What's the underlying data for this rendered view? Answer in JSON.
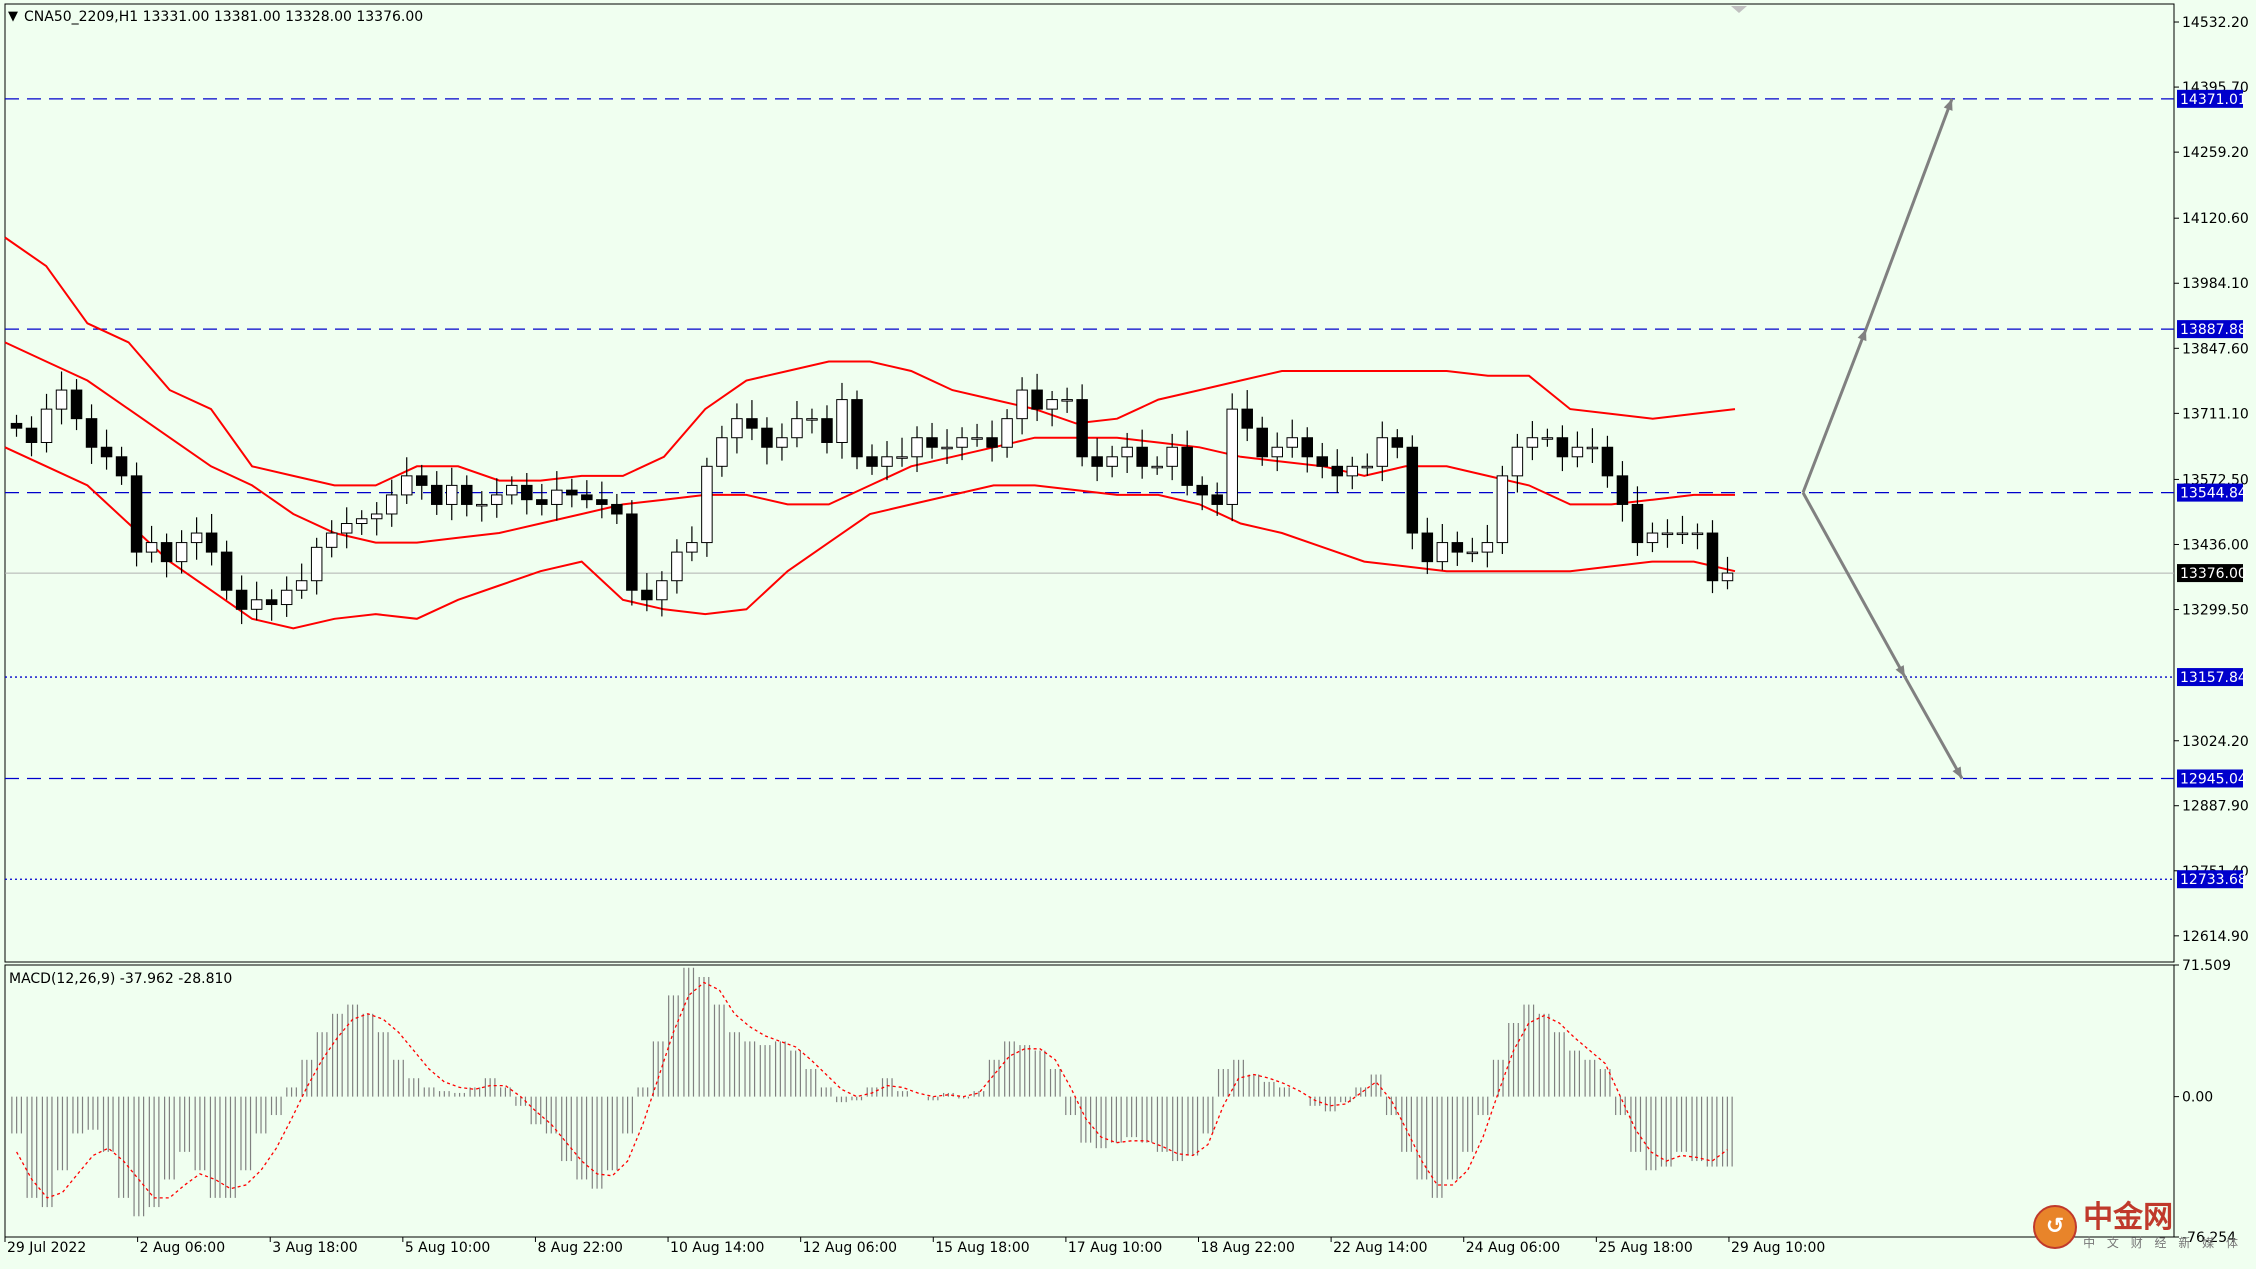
{
  "header": {
    "symbol_line": "CNA50_2209,H1  13331.00 13381.00 13328.00 13376.00"
  },
  "macd_header": "MACD(12,26,9) -37.962 -28.810",
  "colors": {
    "background": "#f0fff0",
    "candle": "#000000",
    "bollinger": "#ff0000",
    "level_line": "#0000cc",
    "arrow": "#808080",
    "macd_hist": "#808080",
    "macd_signal": "#ff0000"
  },
  "logo": {
    "main": "中金网",
    "sub": "中 文 财 经 新 媒 体"
  },
  "chart_data": [
    {
      "type": "line",
      "name": "price",
      "ylim": [
        12560,
        14570
      ],
      "y_ticks": [
        "14532.20",
        "14395.70",
        "14259.20",
        "14120.60",
        "13984.10",
        "13847.60",
        "13711.10",
        "13572.50",
        "13436.00",
        "13299.50",
        "13024.20",
        "12887.90",
        "12751.40",
        "12614.90"
      ],
      "y_tick_values": [
        14532.2,
        14395.7,
        14259.2,
        14120.6,
        13984.1,
        13847.6,
        13711.1,
        13572.5,
        13436.0,
        13299.5,
        13024.2,
        12887.9,
        12751.4,
        12614.9
      ],
      "x_labels": [
        "29 Jul 2022",
        "2 Aug 06:00",
        "3 Aug 18:00",
        "5 Aug 10:00",
        "8 Aug 22:00",
        "10 Aug 14:00",
        "12 Aug 06:00",
        "15 Aug 18:00",
        "17 Aug 10:00",
        "18 Aug 22:00",
        "22 Aug 14:00",
        "24 Aug 06:00",
        "25 Aug 18:00",
        "29 Aug 10:00"
      ],
      "levels": [
        {
          "value": 14371.01,
          "label": "14371.01",
          "style": "dashed"
        },
        {
          "value": 13887.88,
          "label": "13887.88",
          "style": "dashed"
        },
        {
          "value": 13544.84,
          "label": "13544.84",
          "style": "dashed"
        },
        {
          "value": 13157.84,
          "label": "13157.84",
          "style": "dotted"
        },
        {
          "value": 12945.04,
          "label": "12945.04",
          "style": "dashed"
        },
        {
          "value": 12733.68,
          "label": "12733.68",
          "style": "dotted"
        }
      ],
      "current_price": {
        "value": 13376.0,
        "label": "13376.00"
      },
      "close_series": [
        13680,
        13650,
        13720,
        13760,
        13700,
        13640,
        13620,
        13580,
        13420,
        13440,
        13400,
        13440,
        13460,
        13420,
        13340,
        13300,
        13320,
        13310,
        13340,
        13360,
        13430,
        13460,
        13480,
        13490,
        13500,
        13540,
        13580,
        13560,
        13520,
        13560,
        13520,
        13520,
        13540,
        13560,
        13530,
        13520,
        13550,
        13540,
        13530,
        13520,
        13500,
        13340,
        13320,
        13360,
        13420,
        13440,
        13600,
        13660,
        13700,
        13680,
        13640,
        13660,
        13700,
        13700,
        13650,
        13740,
        13620,
        13600,
        13620,
        13620,
        13660,
        13640,
        13640,
        13660,
        13660,
        13640,
        13700,
        13760,
        13720,
        13740,
        13740,
        13620,
        13600,
        13620,
        13640,
        13600,
        13600,
        13640,
        13560,
        13540,
        13520,
        13720,
        13680,
        13620,
        13640,
        13660,
        13620,
        13600,
        13580,
        13600,
        13600,
        13660,
        13640,
        13460,
        13400,
        13440,
        13420,
        13420,
        13440,
        13580,
        13640,
        13660,
        13660,
        13620,
        13640,
        13640,
        13580,
        13520,
        13440,
        13460,
        13460,
        13460,
        13460,
        13360,
        13376
      ],
      "bb_upper": [
        14080,
        14020,
        13900,
        13860,
        13760,
        13720,
        13600,
        13580,
        13560,
        13560,
        13600,
        13600,
        13570,
        13570,
        13580,
        13580,
        13620,
        13720,
        13780,
        13800,
        13820,
        13820,
        13800,
        13760,
        13740,
        13720,
        13690,
        13700,
        13740,
        13760,
        13780,
        13800,
        13800,
        13800,
        13800,
        13800,
        13790,
        13790,
        13720,
        13710,
        13700,
        13710,
        13720
      ],
      "bb_middle": [
        13860,
        13820,
        13780,
        13720,
        13660,
        13600,
        13560,
        13500,
        13460,
        13440,
        13440,
        13450,
        13460,
        13480,
        13500,
        13520,
        13530,
        13540,
        13540,
        13520,
        13520,
        13560,
        13600,
        13620,
        13640,
        13660,
        13660,
        13660,
        13650,
        13640,
        13620,
        13610,
        13600,
        13580,
        13600,
        13600,
        13580,
        13560,
        13520,
        13520,
        13530,
        13540,
        13540
      ],
      "bb_lower": [
        13640,
        13600,
        13560,
        13480,
        13400,
        13340,
        13280,
        13260,
        13280,
        13290,
        13280,
        13320,
        13350,
        13380,
        13400,
        13320,
        13300,
        13290,
        13300,
        13380,
        13440,
        13500,
        13520,
        13540,
        13560,
        13560,
        13550,
        13540,
        13540,
        13520,
        13480,
        13460,
        13430,
        13400,
        13390,
        13380,
        13380,
        13380,
        13380,
        13390,
        13400,
        13400,
        13380
      ]
    },
    {
      "type": "bar",
      "name": "MACD",
      "ylim": [
        -76.254,
        71.509
      ],
      "y_ticks": [
        "71.509",
        "0.00",
        "-76.254"
      ],
      "y_tick_values": [
        71.509,
        0.0,
        -76.254
      ],
      "histogram": [
        -20,
        -55,
        -60,
        -40,
        -20,
        -18,
        -30,
        -55,
        -65,
        -60,
        -45,
        -30,
        -40,
        -55,
        -55,
        -40,
        -20,
        -10,
        5,
        20,
        35,
        45,
        50,
        45,
        35,
        20,
        10,
        5,
        3,
        2,
        5,
        10,
        5,
        -5,
        -15,
        -20,
        -35,
        -45,
        -50,
        -40,
        -20,
        5,
        30,
        55,
        70,
        65,
        50,
        35,
        30,
        28,
        30,
        25,
        15,
        5,
        -3,
        -2,
        5,
        10,
        3,
        0,
        -2,
        2,
        -1,
        3,
        20,
        30,
        28,
        25,
        15,
        -10,
        -25,
        -28,
        -25,
        -22,
        -25,
        -30,
        -35,
        -32,
        -20,
        15,
        20,
        12,
        8,
        5,
        0,
        -5,
        -8,
        -3,
        5,
        12,
        -10,
        -30,
        -45,
        -55,
        -45,
        -30,
        -10,
        20,
        40,
        50,
        45,
        35,
        25,
        20,
        15,
        -10,
        -30,
        -40,
        -38,
        -30,
        -35,
        -38,
        -37.962
      ],
      "signal": [
        -30,
        -45,
        -55,
        -52,
        -42,
        -32,
        -28,
        -35,
        -45,
        -55,
        -55,
        -48,
        -42,
        -45,
        -50,
        -48,
        -40,
        -28,
        -12,
        5,
        20,
        32,
        42,
        45,
        42,
        35,
        25,
        15,
        8,
        5,
        4,
        6,
        6,
        0,
        -8,
        -15,
        -25,
        -35,
        -42,
        -43,
        -35,
        -15,
        10,
        35,
        55,
        62,
        58,
        45,
        38,
        33,
        30,
        27,
        20,
        12,
        4,
        0,
        2,
        6,
        5,
        2,
        0,
        1,
        0,
        2,
        12,
        22,
        26,
        26,
        20,
        5,
        -12,
        -22,
        -25,
        -24,
        -24,
        -27,
        -31,
        -32,
        -26,
        -5,
        10,
        12,
        10,
        7,
        3,
        -2,
        -5,
        -4,
        2,
        8,
        -2,
        -18,
        -35,
        -48,
        -48,
        -40,
        -22,
        2,
        25,
        40,
        44,
        40,
        32,
        25,
        18,
        0,
        -18,
        -30,
        -35,
        -32,
        -33,
        -35,
        -28.81
      ]
    }
  ]
}
